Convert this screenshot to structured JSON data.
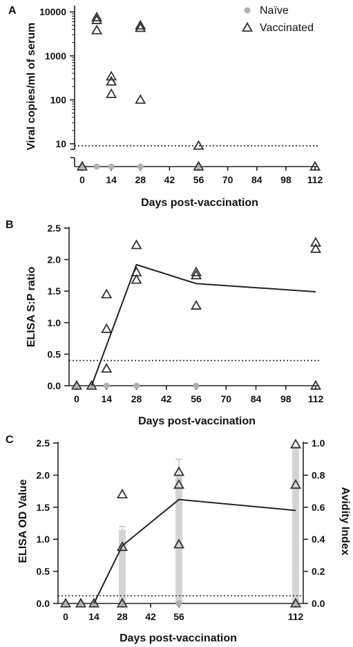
{
  "chart_data": [
    {
      "panel": "A",
      "type": "scatter",
      "ylabel": "Viral copies/ml of serum",
      "xlabel": "Days post-vaccination",
      "y_scale": "log",
      "yticks": [
        "10",
        "100",
        "1000",
        "10000"
      ],
      "xticks": [
        "0",
        "14",
        "28",
        "42",
        "56",
        "70",
        "84",
        "98",
        "112"
      ],
      "xlim": [
        0,
        112
      ],
      "threshold": 9,
      "legend": {
        "position": "top-right",
        "entries": [
          "Naïve",
          "Vaccinated"
        ]
      },
      "series": [
        {
          "name": "Naïve",
          "marker": "circle",
          "color": "#b0b0b0",
          "points": [
            [
              0,
              "undetected"
            ],
            [
              7,
              "undetected"
            ],
            [
              14,
              "undetected"
            ],
            [
              28,
              "undetected"
            ],
            [
              56,
              "undetected"
            ]
          ]
        },
        {
          "name": "Vaccinated",
          "marker": "triangle",
          "color": "#333333",
          "points": [
            [
              0,
              "undetected"
            ],
            [
              7,
              7500
            ],
            [
              7,
              6500
            ],
            [
              7,
              3800
            ],
            [
              14,
              340
            ],
            [
              14,
              260
            ],
            [
              14,
              135
            ],
            [
              28,
              4900
            ],
            [
              28,
              4300
            ],
            [
              28,
              100
            ],
            [
              56,
              9
            ],
            [
              56,
              "undetected"
            ],
            [
              112,
              "undetected"
            ]
          ]
        }
      ]
    },
    {
      "panel": "B",
      "type": "scatter",
      "ylabel": "ELISA S:P ratio",
      "xlabel": "Days post-vaccination",
      "ylim": [
        0,
        2.5
      ],
      "yticks": [
        "0.0",
        "0.5",
        "1.0",
        "1.5",
        "2.0",
        "2.5"
      ],
      "xticks": [
        "0",
        "14",
        "28",
        "42",
        "56",
        "70",
        "84",
        "98",
        "112"
      ],
      "threshold": 0.4,
      "series": [
        {
          "name": "Naïve",
          "marker": "circle",
          "color": "#b0b0b0",
          "points": [
            [
              0,
              0
            ],
            [
              7,
              0
            ],
            [
              14,
              0
            ],
            [
              28,
              0
            ],
            [
              56,
              0
            ]
          ]
        },
        {
          "name": "Vaccinated",
          "marker": "triangle",
          "color": "#333333",
          "points": [
            [
              0,
              0
            ],
            [
              7,
              0
            ],
            [
              14,
              1.45
            ],
            [
              14,
              0.9
            ],
            [
              14,
              0.27
            ],
            [
              28,
              2.23
            ],
            [
              28,
              1.8
            ],
            [
              28,
              1.68
            ],
            [
              56,
              1.8
            ],
            [
              56,
              1.75
            ],
            [
              56,
              1.27
            ],
            [
              112,
              2.27
            ],
            [
              112,
              2.17
            ],
            [
              112,
              0
            ]
          ]
        },
        {
          "name": "mean",
          "kind": "line",
          "color": "#222222",
          "points": [
            [
              7,
              0
            ],
            [
              28,
              1.92
            ],
            [
              56,
              1.62
            ],
            [
              112,
              1.49
            ]
          ]
        }
      ]
    },
    {
      "panel": "C",
      "type": "scatter",
      "ylabel": "ELISA OD Value",
      "y2label": "Avidity Index",
      "xlabel": "Days post-vaccination",
      "ylim": [
        0,
        2.5
      ],
      "y2lim": [
        0,
        1.0
      ],
      "yticks": [
        "0.0",
        "0.5",
        "1.0",
        "1.5",
        "2.0",
        "2.5"
      ],
      "y2ticks": [
        "0.0",
        "0.2",
        "0.4",
        "0.6",
        "0.8",
        "1.0"
      ],
      "xticks": [
        "0",
        "14",
        "28",
        "42",
        "56",
        "112"
      ],
      "threshold": 0.12,
      "avidity_bars": [
        {
          "day": 28,
          "value": 0.46,
          "error": 0.02
        },
        {
          "day": 56,
          "value": 0.8,
          "error": 0.1
        },
        {
          "day": 112,
          "value": 0.98,
          "error": 0.0
        }
      ],
      "series": [
        {
          "name": "Naïve",
          "marker": "circle",
          "color": "#b0b0b0",
          "points": [
            [
              0,
              0
            ],
            [
              7,
              0
            ],
            [
              14,
              0
            ],
            [
              28,
              0
            ],
            [
              56,
              0
            ],
            [
              112,
              0
            ]
          ]
        },
        {
          "name": "Vaccinated",
          "marker": "triangle",
          "color": "#333333",
          "points": [
            [
              0,
              0
            ],
            [
              7,
              0
            ],
            [
              14,
              0
            ],
            [
              28,
              1.7
            ],
            [
              28,
              0.88
            ],
            [
              28,
              0
            ],
            [
              56,
              2.05
            ],
            [
              56,
              1.85
            ],
            [
              56,
              0.92
            ],
            [
              112,
              2.48
            ],
            [
              112,
              1.85
            ],
            [
              112,
              0
            ]
          ]
        },
        {
          "name": "mean",
          "kind": "line",
          "color": "#222222",
          "points": [
            [
              14,
              0
            ],
            [
              28,
              0.9
            ],
            [
              56,
              1.62
            ],
            [
              112,
              1.45
            ]
          ]
        }
      ]
    }
  ]
}
